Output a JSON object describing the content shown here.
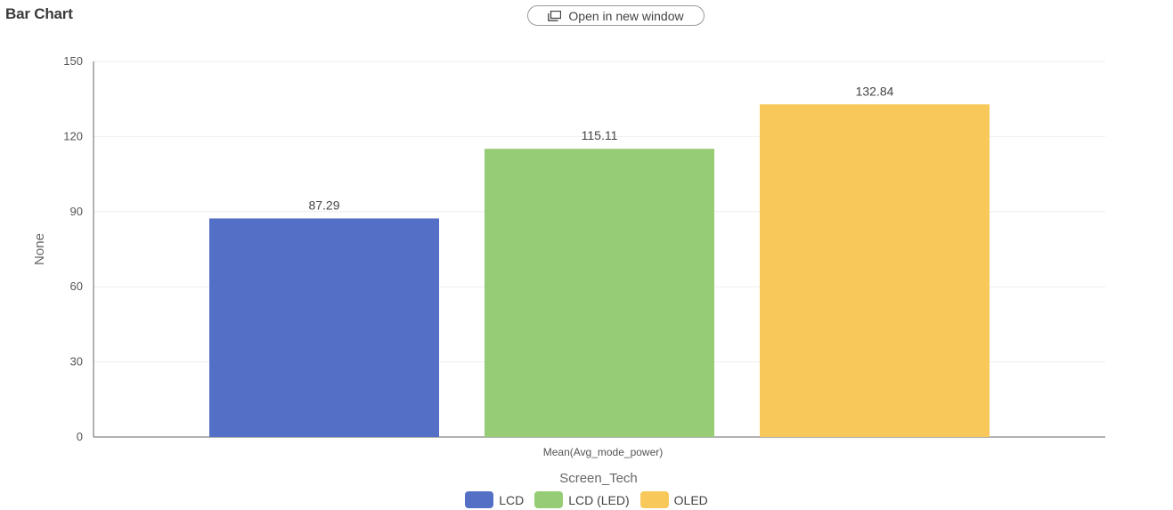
{
  "header": {
    "title": "Bar Chart",
    "open_window_label": "Open in new window",
    "open_window_icon": "open-in-new-window-icon"
  },
  "chart_data": {
    "type": "bar",
    "title": "",
    "xlabel": "Screen_Tech",
    "ylabel": "None",
    "categories": [
      "Mean(Avg_mode_power)"
    ],
    "ylim": [
      0,
      150
    ],
    "yticks": [
      0,
      30,
      60,
      90,
      120,
      150
    ],
    "grid": true,
    "legend_position": "bottom-center",
    "show_data_labels": true,
    "series": [
      {
        "name": "LCD",
        "values": [
          87.29
        ],
        "color": "#5470c6"
      },
      {
        "name": "LCD (LED)",
        "values": [
          115.11
        ],
        "color": "#95cc75"
      },
      {
        "name": "OLED",
        "values": [
          132.84
        ],
        "color": "#f9c85b"
      }
    ]
  }
}
